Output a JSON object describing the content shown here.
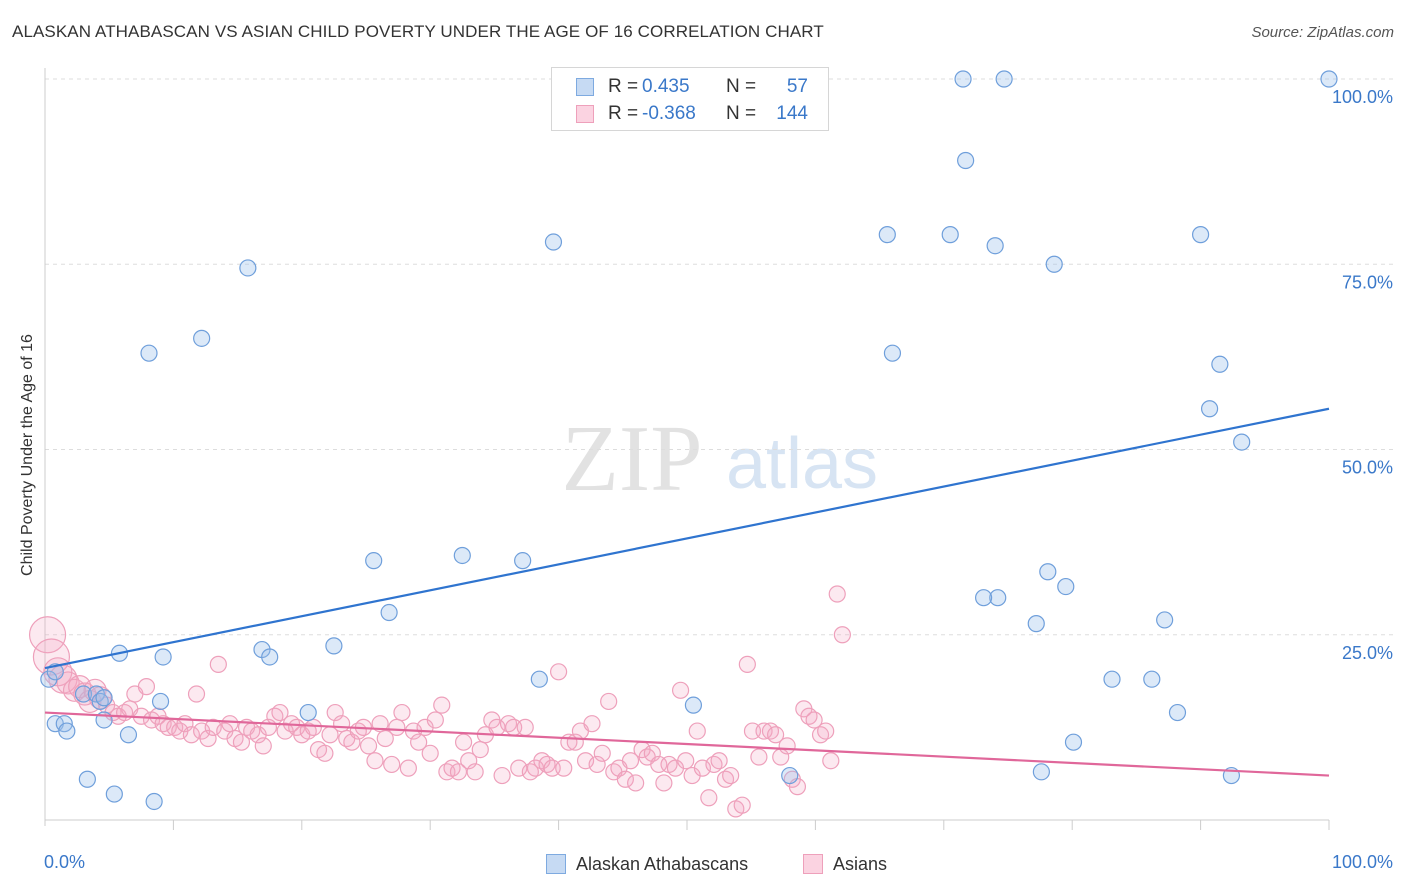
{
  "header": {
    "title": "ALASKAN ATHABASCAN VS ASIAN CHILD POVERTY UNDER THE AGE OF 16 CORRELATION CHART",
    "source": "Source: ZipAtlas.com"
  },
  "watermark": {
    "zip": "ZIP",
    "atlas": "atlas"
  },
  "legend": {
    "rows": [
      {
        "r_label": "R =",
        "r_value": "0.435",
        "n_label": "N =",
        "n_value": "57",
        "color": "#9cc0ea"
      },
      {
        "r_label": "R =",
        "r_value": "-0.368",
        "n_label": "N =",
        "n_value": "144",
        "color": "#f3a9c2"
      }
    ]
  },
  "bottom_legend": {
    "items": [
      {
        "label": "Alaskan Athabascans",
        "color": "#9cc0ea"
      },
      {
        "label": "Asians",
        "color": "#f3a9c2"
      }
    ]
  },
  "chart_data": {
    "type": "scatter",
    "title": "ALASKAN ATHABASCAN VS ASIAN CHILD POVERTY UNDER THE AGE OF 16 CORRELATION CHART",
    "xlabel": "",
    "ylabel": "Child Poverty Under the Age of 16",
    "xlim": [
      0,
      100
    ],
    "ylim": [
      0,
      100
    ],
    "x_tick_labels": [
      "0.0%",
      "100.0%"
    ],
    "y_tick_labels": [
      "25.0%",
      "50.0%",
      "75.0%",
      "100.0%"
    ],
    "y_ticks": [
      25,
      50,
      75,
      100
    ],
    "grid": true,
    "legend_position": "top-center",
    "series": [
      {
        "name": "Alaskan Athabascans",
        "color": "#9cc0ea",
        "line_color": "#2f74cf",
        "trend": {
          "x": [
            0,
            100
          ],
          "y": [
            20.5,
            55.5
          ]
        },
        "points": [
          {
            "x": 0.3,
            "y": 19
          },
          {
            "x": 0.8,
            "y": 20
          },
          {
            "x": 0.8,
            "y": 13
          },
          {
            "x": 1.5,
            "y": 13
          },
          {
            "x": 1.7,
            "y": 12
          },
          {
            "x": 3,
            "y": 17
          },
          {
            "x": 3.3,
            "y": 5.5
          },
          {
            "x": 4,
            "y": 17
          },
          {
            "x": 4.3,
            "y": 16
          },
          {
            "x": 4.6,
            "y": 16.5
          },
          {
            "x": 4.6,
            "y": 13.5
          },
          {
            "x": 5.4,
            "y": 3.5
          },
          {
            "x": 5.8,
            "y": 22.5
          },
          {
            "x": 6.5,
            "y": 11.5
          },
          {
            "x": 8.1,
            "y": 63
          },
          {
            "x": 8.5,
            "y": 2.5
          },
          {
            "x": 9,
            "y": 16
          },
          {
            "x": 9.2,
            "y": 22
          },
          {
            "x": 12.2,
            "y": 65
          },
          {
            "x": 15.8,
            "y": 74.5
          },
          {
            "x": 16.9,
            "y": 23
          },
          {
            "x": 17.5,
            "y": 22
          },
          {
            "x": 20.5,
            "y": 14.5
          },
          {
            "x": 22.5,
            "y": 23.5
          },
          {
            "x": 25.6,
            "y": 35
          },
          {
            "x": 26.8,
            "y": 28
          },
          {
            "x": 32.5,
            "y": 35.7
          },
          {
            "x": 37.2,
            "y": 35
          },
          {
            "x": 38.5,
            "y": 19
          },
          {
            "x": 39.6,
            "y": 78
          },
          {
            "x": 50.5,
            "y": 15.5
          },
          {
            "x": 58,
            "y": 6
          },
          {
            "x": 65.6,
            "y": 79
          },
          {
            "x": 66,
            "y": 63
          },
          {
            "x": 70.5,
            "y": 79
          },
          {
            "x": 71.5,
            "y": 100
          },
          {
            "x": 71.7,
            "y": 89
          },
          {
            "x": 74,
            "y": 77.5
          },
          {
            "x": 74.2,
            "y": 30
          },
          {
            "x": 74.7,
            "y": 100
          },
          {
            "x": 73.1,
            "y": 30
          },
          {
            "x": 77.2,
            "y": 26.5
          },
          {
            "x": 77.6,
            "y": 6.5
          },
          {
            "x": 78.1,
            "y": 33.5
          },
          {
            "x": 78.6,
            "y": 75
          },
          {
            "x": 79.5,
            "y": 31.5
          },
          {
            "x": 80.1,
            "y": 10.5
          },
          {
            "x": 83.1,
            "y": 19
          },
          {
            "x": 86.2,
            "y": 19
          },
          {
            "x": 87.2,
            "y": 27
          },
          {
            "x": 88.2,
            "y": 14.5
          },
          {
            "x": 90,
            "y": 79
          },
          {
            "x": 90.7,
            "y": 55.5
          },
          {
            "x": 91.5,
            "y": 61.5
          },
          {
            "x": 92.4,
            "y": 6
          },
          {
            "x": 93.2,
            "y": 51
          },
          {
            "x": 100,
            "y": 100
          }
        ]
      },
      {
        "name": "Asians",
        "color": "#f3a9c2",
        "line_color": "#e0679a",
        "trend": {
          "x": [
            0,
            100
          ],
          "y": [
            14.5,
            6
          ]
        },
        "points": [
          {
            "x": 0.2,
            "y": 25
          },
          {
            "x": 0.5,
            "y": 22
          },
          {
            "x": 1,
            "y": 20
          },
          {
            "x": 1.4,
            "y": 19
          },
          {
            "x": 1.8,
            "y": 18.5
          },
          {
            "x": 2.3,
            "y": 17.5
          },
          {
            "x": 2.7,
            "y": 18
          },
          {
            "x": 3.1,
            "y": 17
          },
          {
            "x": 3.5,
            "y": 16
          },
          {
            "x": 3.9,
            "y": 17.5
          },
          {
            "x": 4.3,
            "y": 16.5
          },
          {
            "x": 4.8,
            "y": 15.5
          },
          {
            "x": 5.3,
            "y": 14.5
          },
          {
            "x": 5.7,
            "y": 14
          },
          {
            "x": 6.2,
            "y": 14.5
          },
          {
            "x": 6.6,
            "y": 15
          },
          {
            "x": 7,
            "y": 17
          },
          {
            "x": 7.5,
            "y": 14
          },
          {
            "x": 7.9,
            "y": 18
          },
          {
            "x": 8.3,
            "y": 13.5
          },
          {
            "x": 8.8,
            "y": 14
          },
          {
            "x": 9.2,
            "y": 13
          },
          {
            "x": 9.6,
            "y": 12.5
          },
          {
            "x": 10.1,
            "y": 12.5
          },
          {
            "x": 10.5,
            "y": 12
          },
          {
            "x": 10.9,
            "y": 13
          },
          {
            "x": 11.4,
            "y": 11.5
          },
          {
            "x": 11.8,
            "y": 17
          },
          {
            "x": 12.2,
            "y": 12
          },
          {
            "x": 12.7,
            "y": 11
          },
          {
            "x": 13.1,
            "y": 12.5
          },
          {
            "x": 13.5,
            "y": 21
          },
          {
            "x": 14,
            "y": 12
          },
          {
            "x": 14.4,
            "y": 13
          },
          {
            "x": 14.8,
            "y": 11
          },
          {
            "x": 15.3,
            "y": 10.5
          },
          {
            "x": 15.7,
            "y": 12.5
          },
          {
            "x": 16.1,
            "y": 12
          },
          {
            "x": 16.6,
            "y": 11.5
          },
          {
            "x": 17,
            "y": 10
          },
          {
            "x": 17.4,
            "y": 12.5
          },
          {
            "x": 17.9,
            "y": 14
          },
          {
            "x": 18.3,
            "y": 14.5
          },
          {
            "x": 18.7,
            "y": 12
          },
          {
            "x": 19.2,
            "y": 13
          },
          {
            "x": 19.6,
            "y": 12.5
          },
          {
            "x": 20,
            "y": 11.5
          },
          {
            "x": 20.5,
            "y": 12
          },
          {
            "x": 20.9,
            "y": 12.5
          },
          {
            "x": 21.3,
            "y": 9.5
          },
          {
            "x": 21.8,
            "y": 9
          },
          {
            "x": 22.2,
            "y": 11.5
          },
          {
            "x": 22.6,
            "y": 14.5
          },
          {
            "x": 23.1,
            "y": 13
          },
          {
            "x": 23.5,
            "y": 11
          },
          {
            "x": 23.9,
            "y": 10.5
          },
          {
            "x": 24.4,
            "y": 12
          },
          {
            "x": 24.8,
            "y": 12.5
          },
          {
            "x": 25.2,
            "y": 10
          },
          {
            "x": 25.7,
            "y": 8
          },
          {
            "x": 26.1,
            "y": 13
          },
          {
            "x": 26.5,
            "y": 11
          },
          {
            "x": 27,
            "y": 7.5
          },
          {
            "x": 27.4,
            "y": 12.5
          },
          {
            "x": 27.8,
            "y": 14.5
          },
          {
            "x": 28.3,
            "y": 7
          },
          {
            "x": 28.7,
            "y": 12
          },
          {
            "x": 29.1,
            "y": 10.5
          },
          {
            "x": 29.6,
            "y": 12.5
          },
          {
            "x": 30,
            "y": 9
          },
          {
            "x": 30.4,
            "y": 13.5
          },
          {
            "x": 30.9,
            "y": 15.5
          },
          {
            "x": 31.3,
            "y": 6.5
          },
          {
            "x": 31.7,
            "y": 7
          },
          {
            "x": 32.2,
            "y": 6.5
          },
          {
            "x": 32.6,
            "y": 10.5
          },
          {
            "x": 33,
            "y": 8
          },
          {
            "x": 33.5,
            "y": 6.5
          },
          {
            "x": 33.9,
            "y": 9.5
          },
          {
            "x": 34.3,
            "y": 11.5
          },
          {
            "x": 34.8,
            "y": 13.5
          },
          {
            "x": 35.2,
            "y": 12.5
          },
          {
            "x": 35.6,
            "y": 6
          },
          {
            "x": 36.1,
            "y": 13
          },
          {
            "x": 36.5,
            "y": 12.5
          },
          {
            "x": 36.9,
            "y": 7
          },
          {
            "x": 37.4,
            "y": 12.5
          },
          {
            "x": 37.8,
            "y": 6.5
          },
          {
            "x": 38.2,
            "y": 7
          },
          {
            "x": 38.7,
            "y": 8
          },
          {
            "x": 39.1,
            "y": 7.5
          },
          {
            "x": 39.5,
            "y": 7
          },
          {
            "x": 40,
            "y": 20
          },
          {
            "x": 40.4,
            "y": 7
          },
          {
            "x": 40.8,
            "y": 10.5
          },
          {
            "x": 41.3,
            "y": 10.5
          },
          {
            "x": 41.7,
            "y": 12
          },
          {
            "x": 42.1,
            "y": 8
          },
          {
            "x": 42.6,
            "y": 13
          },
          {
            "x": 43,
            "y": 7.5
          },
          {
            "x": 43.4,
            "y": 9
          },
          {
            "x": 43.9,
            "y": 16
          },
          {
            "x": 44.3,
            "y": 6.5
          },
          {
            "x": 44.7,
            "y": 7
          },
          {
            "x": 45.2,
            "y": 5.5
          },
          {
            "x": 45.6,
            "y": 8
          },
          {
            "x": 46,
            "y": 5
          },
          {
            "x": 46.5,
            "y": 9.5
          },
          {
            "x": 46.9,
            "y": 8.5
          },
          {
            "x": 47.3,
            "y": 9
          },
          {
            "x": 47.8,
            "y": 7.5
          },
          {
            "x": 48.2,
            "y": 5
          },
          {
            "x": 48.6,
            "y": 7.5
          },
          {
            "x": 49.1,
            "y": 7
          },
          {
            "x": 49.5,
            "y": 17.5
          },
          {
            "x": 49.9,
            "y": 8
          },
          {
            "x": 50.4,
            "y": 6
          },
          {
            "x": 50.8,
            "y": 12
          },
          {
            "x": 51.2,
            "y": 7
          },
          {
            "x": 51.7,
            "y": 3
          },
          {
            "x": 52.1,
            "y": 7.5
          },
          {
            "x": 52.5,
            "y": 8
          },
          {
            "x": 53,
            "y": 5.5
          },
          {
            "x": 53.4,
            "y": 6
          },
          {
            "x": 53.8,
            "y": 1.5
          },
          {
            "x": 54.3,
            "y": 2
          },
          {
            "x": 54.7,
            "y": 21
          },
          {
            "x": 55.1,
            "y": 12
          },
          {
            "x": 55.6,
            "y": 8.5
          },
          {
            "x": 56,
            "y": 12
          },
          {
            "x": 56.5,
            "y": 12
          },
          {
            "x": 56.9,
            "y": 11.5
          },
          {
            "x": 57.3,
            "y": 8.5
          },
          {
            "x": 57.8,
            "y": 10
          },
          {
            "x": 58.2,
            "y": 5.5
          },
          {
            "x": 58.6,
            "y": 4.5
          },
          {
            "x": 59.1,
            "y": 15
          },
          {
            "x": 59.5,
            "y": 14
          },
          {
            "x": 59.9,
            "y": 13.5
          },
          {
            "x": 60.4,
            "y": 11.5
          },
          {
            "x": 60.8,
            "y": 12
          },
          {
            "x": 61.2,
            "y": 8
          },
          {
            "x": 61.7,
            "y": 30.5
          },
          {
            "x": 62.1,
            "y": 25
          }
        ]
      }
    ]
  }
}
